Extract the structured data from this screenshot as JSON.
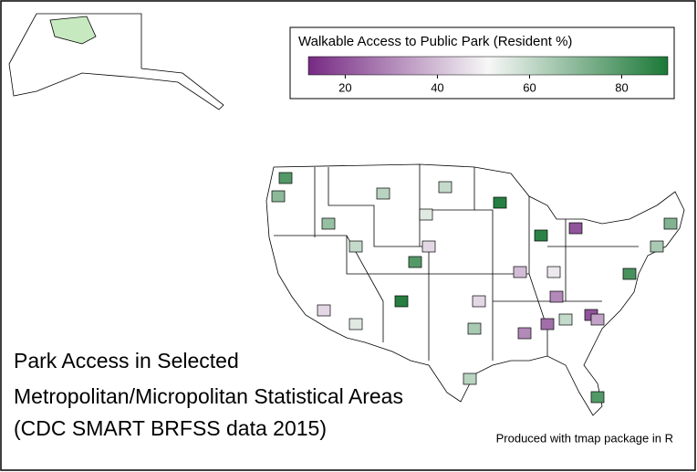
{
  "title_lines": [
    "Park Access in Selected",
    "Metropolitan/Micropolitan Statistical Areas",
    "(CDC SMART BRFSS data 2015)"
  ],
  "credit": "Produced with tmap package in R",
  "legend": {
    "title": "Walkable Access to Public Park (Resident %)",
    "lim": [
      12,
      90
    ],
    "ticks": [
      20,
      40,
      60,
      80
    ],
    "colors": [
      "#762a83",
      "#f7f7f7",
      "#1b7837"
    ]
  },
  "areas": {
    "values": [
      80,
      70,
      68,
      60,
      80,
      88,
      45,
      55,
      62,
      55,
      60,
      88,
      87,
      20,
      40,
      48,
      25,
      30,
      20,
      82,
      72,
      65,
      35,
      30,
      62,
      65,
      80,
      45,
      45,
      60
    ]
  }
}
